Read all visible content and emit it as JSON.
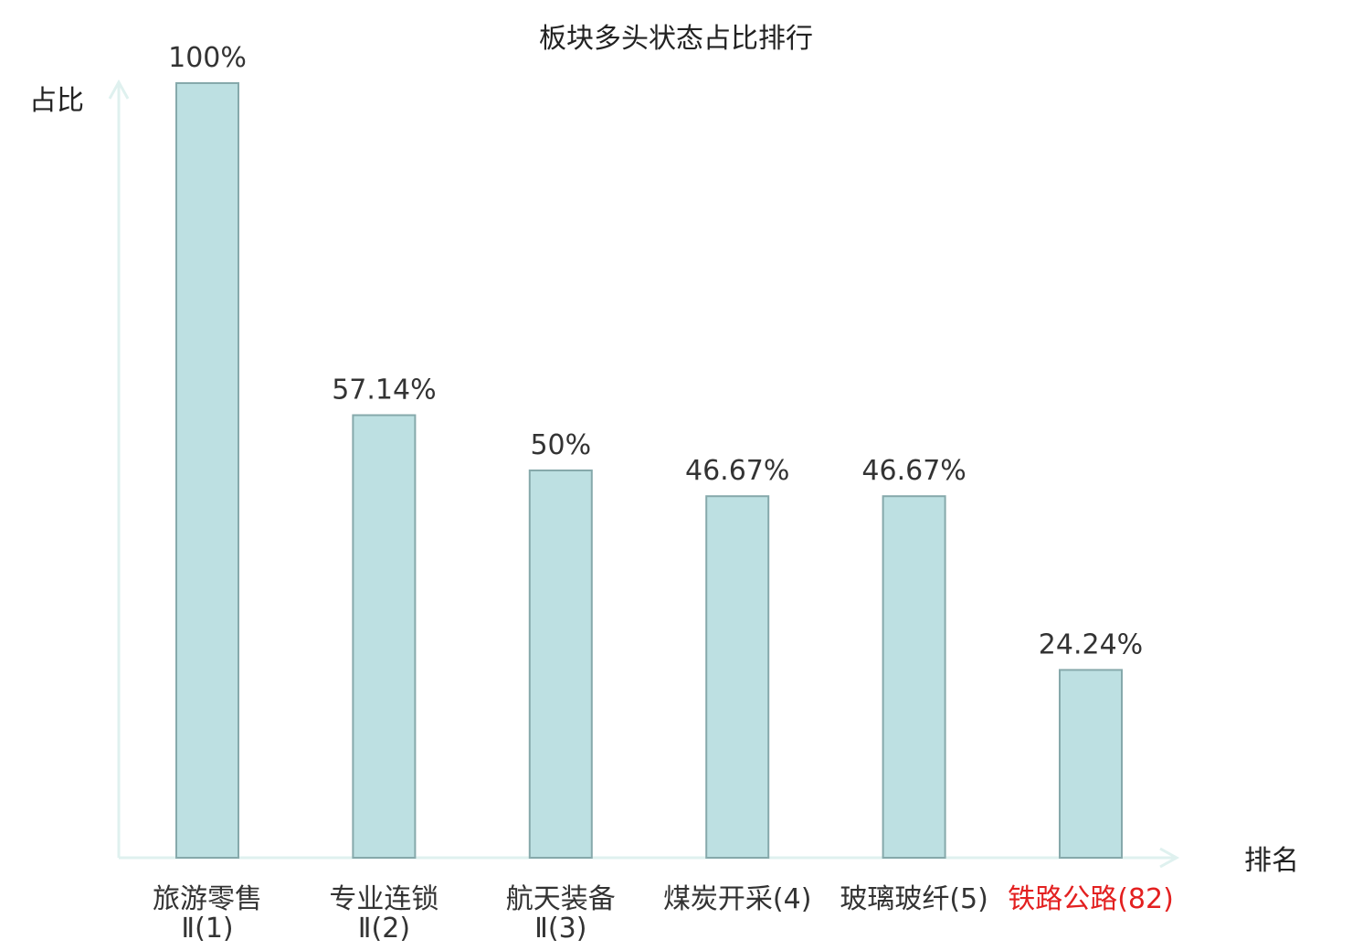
{
  "chart_data": {
    "type": "bar",
    "title": "板块多头状态占比排行",
    "ylabel": "占比",
    "xlabel": "排名",
    "categories": [
      {
        "lines": [
          "旅游零售",
          "Ⅱ(1)"
        ],
        "highlight": false
      },
      {
        "lines": [
          "专业连锁",
          "Ⅱ(2)"
        ],
        "highlight": false
      },
      {
        "lines": [
          "航天装备",
          "Ⅱ(3)"
        ],
        "highlight": false
      },
      {
        "lines": [
          "煤炭开采(4)"
        ],
        "highlight": false
      },
      {
        "lines": [
          "玻璃玻纤(5)"
        ],
        "highlight": false
      },
      {
        "lines": [
          "铁路公路(82)"
        ],
        "highlight": true
      }
    ],
    "values": [
      100,
      57.14,
      50,
      46.67,
      46.67,
      24.24
    ],
    "value_labels": [
      "100%",
      "57.14%",
      "50%",
      "46.67%",
      "46.67%",
      "24.24%"
    ],
    "ylim": [
      0,
      100
    ],
    "grid": false,
    "legend": "none"
  },
  "colors": {
    "bar_fill": "#bde0e2",
    "bar_stroke": "#86a9ab",
    "axis": "#dff1ef",
    "text": "#333333",
    "highlight": "#e32020"
  }
}
